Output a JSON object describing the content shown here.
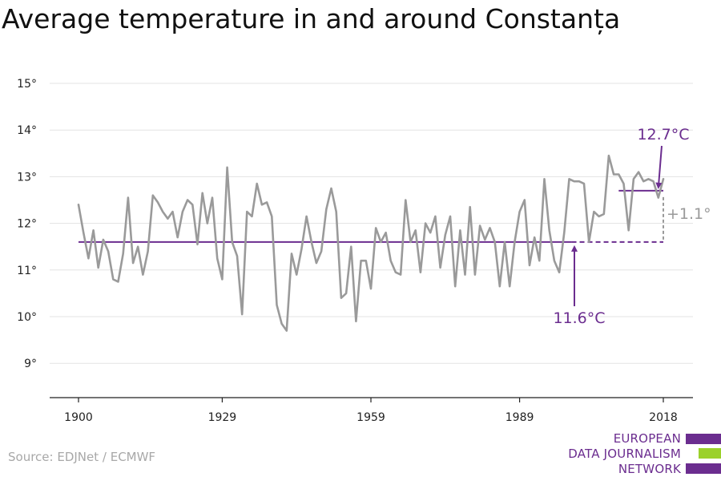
{
  "title": "Average temperature in and around Constanța",
  "source": "Source: EDJNet / ECMWF",
  "logo": {
    "lines": [
      "EUROPEAN",
      "DATA JOURNALISM",
      "NETWORK"
    ],
    "colors": [
      "#6b2d8f",
      "#9bd12b",
      "#6b2d8f"
    ]
  },
  "colors": {
    "series": "#9a9a9a",
    "accent": "#6b2d8f",
    "diff": "#9a9a9a",
    "grid": "#e3e3e3",
    "axis": "#222222"
  },
  "chart_data": {
    "type": "line",
    "title": "Average temperature in and around Constanța",
    "xlabel": "",
    "ylabel": "",
    "xlim": [
      1900,
      2018
    ],
    "ylim": [
      8.3,
      15.1
    ],
    "xticks": [
      1900,
      1929,
      1959,
      1989,
      2018
    ],
    "xtick_labels": [
      "1900",
      "1929",
      "1959",
      "1989",
      "2018"
    ],
    "yticks": [
      9,
      10,
      11,
      12,
      13,
      14,
      15
    ],
    "ytick_labels": [
      "9°",
      "10°",
      "11°",
      "12°",
      "13°",
      "14°",
      "15°"
    ],
    "grid": true,
    "legend": "none",
    "series": [
      {
        "x": [
          1900,
          1901,
          1902,
          1903,
          1904,
          1905,
          1906,
          1907,
          1908,
          1909,
          1910,
          1911,
          1912,
          1913,
          1914,
          1915,
          1916,
          1917,
          1918,
          1919,
          1920,
          1921,
          1922,
          1923,
          1924,
          1925,
          1926,
          1927,
          1928,
          1929,
          1930,
          1931,
          1932,
          1933,
          1934,
          1935,
          1936,
          1937,
          1938,
          1939,
          1940,
          1941,
          1942,
          1943,
          1944,
          1945,
          1946,
          1947,
          1948,
          1949,
          1950,
          1951,
          1952,
          1953,
          1954,
          1955,
          1956,
          1957,
          1958,
          1959,
          1960,
          1961,
          1962,
          1963,
          1964,
          1965,
          1966,
          1967,
          1968,
          1969,
          1970,
          1971,
          1972,
          1973,
          1974,
          1975,
          1976,
          1977,
          1978,
          1979,
          1980,
          1981,
          1982,
          1983,
          1984,
          1985,
          1986,
          1987,
          1988,
          1989,
          1990,
          1991,
          1992,
          1993,
          1994,
          1995,
          1996,
          1997,
          1998,
          1999,
          2000,
          2001,
          2002,
          2003,
          2004,
          2005,
          2006,
          2007,
          2008,
          2009,
          2010,
          2011,
          2012,
          2013,
          2014,
          2015,
          2016,
          2017,
          2018
        ],
        "values": [
          12.4,
          11.8,
          11.25,
          11.85,
          11.05,
          11.65,
          11.4,
          10.8,
          10.75,
          11.35,
          12.55,
          11.15,
          11.5,
          10.9,
          11.4,
          12.6,
          12.45,
          12.25,
          12.1,
          12.25,
          11.7,
          12.25,
          12.5,
          12.4,
          11.55,
          12.65,
          12.0,
          12.55,
          11.25,
          10.8,
          13.2,
          11.6,
          11.3,
          10.05,
          12.25,
          12.15,
          12.85,
          12.4,
          12.45,
          12.15,
          10.25,
          9.85,
          9.7,
          11.35,
          10.9,
          11.45,
          12.15,
          11.6,
          11.15,
          11.4,
          12.3,
          12.75,
          12.25,
          10.4,
          10.5,
          11.5,
          9.9,
          11.2,
          11.2,
          10.6,
          11.9,
          11.6,
          11.8,
          11.2,
          10.95,
          10.9,
          12.5,
          11.6,
          11.85,
          10.95,
          12.0,
          11.8,
          12.15,
          11.05,
          11.75,
          12.15,
          10.65,
          11.85,
          10.9,
          12.35,
          10.9,
          11.95,
          11.65,
          11.9,
          11.6,
          10.65,
          11.6,
          10.65,
          11.6,
          12.25,
          12.5,
          11.1,
          11.7,
          11.2,
          12.95,
          11.85,
          11.2,
          10.95,
          11.8,
          12.95,
          12.9,
          12.9,
          12.85,
          11.6,
          12.25,
          12.15,
          12.2,
          13.45,
          13.05,
          13.05,
          12.85,
          11.85,
          12.95,
          13.1,
          12.9,
          12.95,
          12.9,
          12.55,
          12.95
        ]
      }
    ],
    "annotations": {
      "baseline": {
        "value": 11.6,
        "label": "11.6°C",
        "from": 1900,
        "to": 2018
      },
      "recent": {
        "value": 12.7,
        "label": "12.7°C",
        "from": 2009,
        "to": 2018
      },
      "difference": {
        "label": "+1.1°"
      }
    }
  }
}
